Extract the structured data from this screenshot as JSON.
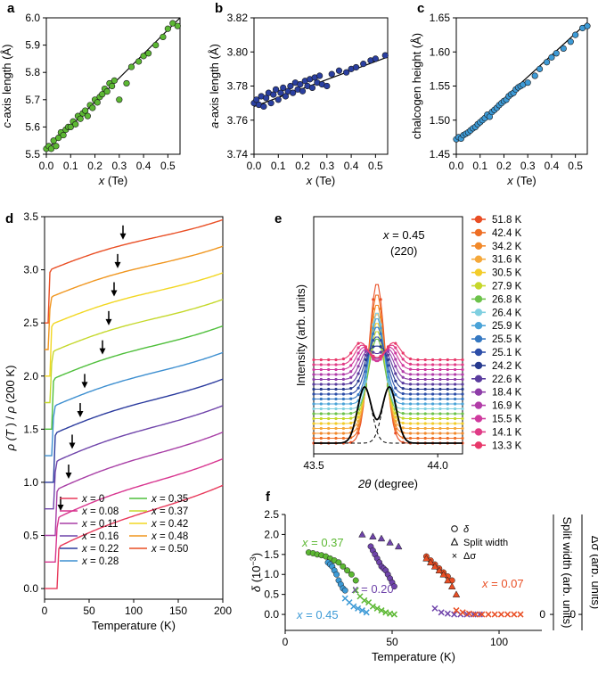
{
  "chart_data": [
    {
      "id": "a",
      "type": "scatter",
      "panel_label": "a",
      "xlabel_var": "x",
      "xlabel_unit": " (Te)",
      "ylabel_var": "c",
      "ylabel_rest": "-axis length (Å)",
      "xlim": [
        0,
        0.55
      ],
      "ylim": [
        5.5,
        6.0
      ],
      "xticks": [
        "0.0",
        "0.1",
        "0.2",
        "0.3",
        "0.4",
        "0.5"
      ],
      "yticks": [
        "5.5",
        "5.6",
        "5.7",
        "5.8",
        "5.9",
        "6.0"
      ],
      "color": "#5cb833",
      "fit": [
        [
          0.0,
          5.515
        ],
        [
          0.55,
          6.0
        ]
      ],
      "points": [
        [
          0.0,
          5.52
        ],
        [
          0.01,
          5.53
        ],
        [
          0.02,
          5.52
        ],
        [
          0.03,
          5.55
        ],
        [
          0.04,
          5.53
        ],
        [
          0.05,
          5.56
        ],
        [
          0.06,
          5.58
        ],
        [
          0.07,
          5.57
        ],
        [
          0.08,
          5.59
        ],
        [
          0.09,
          5.6
        ],
        [
          0.1,
          5.6
        ],
        [
          0.11,
          5.62
        ],
        [
          0.12,
          5.61
        ],
        [
          0.13,
          5.64
        ],
        [
          0.14,
          5.63
        ],
        [
          0.15,
          5.65
        ],
        [
          0.16,
          5.66
        ],
        [
          0.17,
          5.64
        ],
        [
          0.18,
          5.68
        ],
        [
          0.19,
          5.67
        ],
        [
          0.2,
          5.7
        ],
        [
          0.21,
          5.69
        ],
        [
          0.22,
          5.71
        ],
        [
          0.23,
          5.72
        ],
        [
          0.24,
          5.74
        ],
        [
          0.25,
          5.73
        ],
        [
          0.26,
          5.76
        ],
        [
          0.27,
          5.75
        ],
        [
          0.28,
          5.77
        ],
        [
          0.3,
          5.7
        ],
        [
          0.33,
          5.76
        ],
        [
          0.35,
          5.82
        ],
        [
          0.38,
          5.84
        ],
        [
          0.4,
          5.86
        ],
        [
          0.42,
          5.87
        ],
        [
          0.45,
          5.9
        ],
        [
          0.48,
          5.93
        ],
        [
          0.5,
          5.96
        ],
        [
          0.52,
          5.98
        ],
        [
          0.54,
          5.97
        ]
      ]
    },
    {
      "id": "b",
      "type": "scatter",
      "panel_label": "b",
      "xlabel_var": "x",
      "xlabel_unit": " (Te)",
      "ylabel_var": "a",
      "ylabel_rest": "-axis length (Å)",
      "xlim": [
        0,
        0.55
      ],
      "ylim": [
        3.74,
        3.82
      ],
      "xticks": [
        "0.0",
        "0.1",
        "0.2",
        "0.3",
        "0.4",
        "0.5"
      ],
      "yticks": [
        "3.74",
        "3.76",
        "3.78",
        "3.80",
        "3.82"
      ],
      "color": "#2a3fa0",
      "fit": [
        [
          0.0,
          3.768
        ],
        [
          0.55,
          3.797
        ]
      ],
      "points": [
        [
          0.0,
          3.77
        ],
        [
          0.01,
          3.772
        ],
        [
          0.02,
          3.769
        ],
        [
          0.03,
          3.774
        ],
        [
          0.04,
          3.768
        ],
        [
          0.05,
          3.773
        ],
        [
          0.06,
          3.776
        ],
        [
          0.07,
          3.77
        ],
        [
          0.08,
          3.775
        ],
        [
          0.09,
          3.778
        ],
        [
          0.1,
          3.772
        ],
        [
          0.11,
          3.776
        ],
        [
          0.12,
          3.779
        ],
        [
          0.13,
          3.774
        ],
        [
          0.14,
          3.777
        ],
        [
          0.15,
          3.78
        ],
        [
          0.16,
          3.776
        ],
        [
          0.17,
          3.782
        ],
        [
          0.18,
          3.778
        ],
        [
          0.19,
          3.781
        ],
        [
          0.2,
          3.777
        ],
        [
          0.21,
          3.783
        ],
        [
          0.22,
          3.78
        ],
        [
          0.23,
          3.784
        ],
        [
          0.24,
          3.779
        ],
        [
          0.25,
          3.785
        ],
        [
          0.26,
          3.782
        ],
        [
          0.27,
          3.786
        ],
        [
          0.28,
          3.781
        ],
        [
          0.3,
          3.78
        ],
        [
          0.32,
          3.787
        ],
        [
          0.35,
          3.789
        ],
        [
          0.38,
          3.788
        ],
        [
          0.4,
          3.79
        ],
        [
          0.42,
          3.791
        ],
        [
          0.45,
          3.793
        ],
        [
          0.48,
          3.795
        ],
        [
          0.5,
          3.796
        ],
        [
          0.54,
          3.798
        ]
      ]
    },
    {
      "id": "c",
      "type": "scatter",
      "panel_label": "c",
      "xlabel_var": "x",
      "xlabel_unit": " (Te)",
      "ylabel_var": "",
      "ylabel_rest": "chalcogen height (Å)",
      "xlim": [
        0,
        0.55
      ],
      "ylim": [
        1.45,
        1.65
      ],
      "xticks": [
        "0.0",
        "0.1",
        "0.2",
        "0.3",
        "0.4",
        "0.5"
      ],
      "yticks": [
        "1.45",
        "1.50",
        "1.55",
        "1.60",
        "1.65"
      ],
      "color": "#3d9ad6",
      "fit": [
        [
          0.0,
          1.468
        ],
        [
          0.55,
          1.643
        ]
      ],
      "points": [
        [
          0.0,
          1.472
        ],
        [
          0.01,
          1.475
        ],
        [
          0.02,
          1.473
        ],
        [
          0.03,
          1.478
        ],
        [
          0.04,
          1.48
        ],
        [
          0.05,
          1.482
        ],
        [
          0.06,
          1.485
        ],
        [
          0.07,
          1.488
        ],
        [
          0.08,
          1.49
        ],
        [
          0.09,
          1.494
        ],
        [
          0.1,
          1.497
        ],
        [
          0.11,
          1.5
        ],
        [
          0.12,
          1.503
        ],
        [
          0.13,
          1.508
        ],
        [
          0.14,
          1.505
        ],
        [
          0.15,
          1.512
        ],
        [
          0.16,
          1.515
        ],
        [
          0.17,
          1.518
        ],
        [
          0.18,
          1.522
        ],
        [
          0.19,
          1.525
        ],
        [
          0.2,
          1.528
        ],
        [
          0.21,
          1.53
        ],
        [
          0.22,
          1.535
        ],
        [
          0.23,
          1.538
        ],
        [
          0.24,
          1.54
        ],
        [
          0.25,
          1.545
        ],
        [
          0.26,
          1.548
        ],
        [
          0.27,
          1.55
        ],
        [
          0.28,
          1.552
        ],
        [
          0.3,
          1.555
        ],
        [
          0.33,
          1.565
        ],
        [
          0.35,
          1.575
        ],
        [
          0.38,
          1.585
        ],
        [
          0.4,
          1.592
        ],
        [
          0.42,
          1.598
        ],
        [
          0.45,
          1.605
        ],
        [
          0.48,
          1.615
        ],
        [
          0.5,
          1.625
        ],
        [
          0.53,
          1.635
        ],
        [
          0.55,
          1.638
        ]
      ]
    },
    {
      "id": "d",
      "type": "line",
      "panel_label": "d",
      "xlabel": "Temperature (K)",
      "ylabel": "ρ (T ) / ρ (200 K)",
      "xlim": [
        0,
        200
      ],
      "ylim": [
        -0.1,
        3.5
      ],
      "xticks": [
        "0",
        "50",
        "100",
        "150",
        "200"
      ],
      "yticks": [
        "0.0",
        "0.5",
        "1.0",
        "1.5",
        "2.0",
        "2.5",
        "3.0",
        "3.5"
      ],
      "series": [
        {
          "name": "x = 0",
          "color": "#e8385a",
          "offset": 0.0,
          "tc": 14,
          "res0": 0.33,
          "arrow_T": null
        },
        {
          "name": "x = 0.08",
          "color": "#d8358f",
          "offset": 0.25,
          "tc": 13,
          "res0": 0.36,
          "arrow_T": 18
        },
        {
          "name": "x = 0.11",
          "color": "#a83fa6",
          "offset": 0.5,
          "tc": 12,
          "res0": 0.38,
          "arrow_T": 27
        },
        {
          "name": "x = 0.16",
          "color": "#6f44aa",
          "offset": 0.75,
          "tc": 11,
          "res0": 0.4,
          "arrow_T": 31
        },
        {
          "name": "x = 0.22",
          "color": "#2b3b9e",
          "offset": 1.0,
          "tc": 10,
          "res0": 0.42,
          "arrow_T": 40
        },
        {
          "name": "x = 0.28",
          "color": "#3d8fd0",
          "offset": 1.25,
          "tc": 9,
          "res0": 0.43,
          "arrow_T": 45
        },
        {
          "name": "x = 0.35",
          "color": "#4fbf3b",
          "offset": 1.5,
          "tc": 8,
          "res0": 0.44,
          "arrow_T": 65
        },
        {
          "name": "x = 0.37",
          "color": "#c5d82b",
          "offset": 1.75,
          "tc": 7,
          "res0": 0.45,
          "arrow_T": 72
        },
        {
          "name": "x = 0.42",
          "color": "#f2d722",
          "offset": 2.0,
          "tc": 6,
          "res0": 0.46,
          "arrow_T": 78
        },
        {
          "name": "x = 0.48",
          "color": "#f0961f",
          "offset": 2.25,
          "tc": 5,
          "res0": 0.47,
          "arrow_T": 82
        },
        {
          "name": "x = 0.50",
          "color": "#e94e24",
          "offset": 2.5,
          "tc": 4,
          "res0": 0.48,
          "arrow_T": 88
        }
      ]
    },
    {
      "id": "e",
      "type": "line",
      "panel_label": "e",
      "xlabel_var": "2θ",
      "xlabel_rest": " (degree)",
      "ylabel": "Intensity (arb. units)",
      "xlim": [
        43.5,
        44.1
      ],
      "xticks": [
        "43.5",
        "44.0"
      ],
      "annotation": [
        "x = 0.45",
        "(220)"
      ],
      "series": [
        {
          "name": "51.8 K",
          "color": "#e94e24"
        },
        {
          "name": "42.4 K",
          "color": "#ee6e24"
        },
        {
          "name": "34.2 K",
          "color": "#f2892a"
        },
        {
          "name": "31.6 K",
          "color": "#f5a83a"
        },
        {
          "name": "30.5 K",
          "color": "#f3cc29"
        },
        {
          "name": "27.9 K",
          "color": "#c6d72a"
        },
        {
          "name": "26.8 K",
          "color": "#6cc24a"
        },
        {
          "name": "26.4 K",
          "color": "#7fcfe0"
        },
        {
          "name": "25.9 K",
          "color": "#4aa3d8"
        },
        {
          "name": "25.5 K",
          "color": "#3578c2"
        },
        {
          "name": "25.1 K",
          "color": "#2d4ea8"
        },
        {
          "name": "24.2 K",
          "color": "#273a8f"
        },
        {
          "name": "22.6 K",
          "color": "#5a3c9e"
        },
        {
          "name": "18.4 K",
          "color": "#8e3da8"
        },
        {
          "name": "16.9 K",
          "color": "#b23ca8"
        },
        {
          "name": "15.5 K",
          "color": "#cf3a9e"
        },
        {
          "name": "14.1 K",
          "color": "#e03b86"
        },
        {
          "name": "13.3 K",
          "color": "#e8386a"
        }
      ]
    },
    {
      "id": "f",
      "type": "scatter",
      "panel_label": "f",
      "xlabel": "Temperature (K)",
      "ylabel": "δ (10⁻³)",
      "ylabel_right1": "Split width (arb. units)",
      "ylabel_right2": "Δσ (arb. units)",
      "xlim": [
        0,
        120
      ],
      "ylim": [
        -0.4,
        2.5
      ],
      "xticks": [
        "0",
        "50",
        "100"
      ],
      "yticks": [
        "0.0",
        "0.5",
        "1.0",
        "1.5",
        "2.0",
        "2.5"
      ],
      "right_zero_labels": [
        "0",
        "0"
      ],
      "legend": [
        "δ",
        "Split width",
        "Δσ"
      ],
      "groups": [
        {
          "label": "x = 0.37",
          "color": "#5cb833",
          "delta": [
            [
              11,
              1.55
            ],
            [
              13,
              1.53
            ],
            [
              15,
              1.5
            ],
            [
              17,
              1.48
            ],
            [
              19,
              1.45
            ],
            [
              21,
              1.4
            ],
            [
              23,
              1.35
            ],
            [
              25,
              1.3
            ],
            [
              27,
              1.2
            ],
            [
              29,
              1.1
            ],
            [
              31,
              1.0
            ],
            [
              33,
              0.85
            ]
          ],
          "sigma": [
            [
              33,
              0.6
            ],
            [
              35,
              0.45
            ],
            [
              37,
              0.35
            ],
            [
              39,
              0.3
            ],
            [
              41,
              0.2
            ],
            [
              43,
              0.15
            ],
            [
              45,
              0.1
            ],
            [
              47,
              0.05
            ],
            [
              49,
              0.02
            ],
            [
              51,
              0.0
            ]
          ]
        },
        {
          "label": "x = 0.45",
          "color": "#3d9ad6",
          "delta": [
            [
              20,
              1.3
            ],
            [
              21,
              1.25
            ],
            [
              22,
              1.2
            ],
            [
              23,
              1.1
            ],
            [
              24,
              1.0
            ],
            [
              25,
              0.85
            ],
            [
              26,
              0.75
            ],
            [
              27,
              0.65
            ],
            [
              28,
              0.6
            ]
          ],
          "sigma": [
            [
              28,
              0.4
            ],
            [
              30,
              0.3
            ],
            [
              32,
              0.2
            ],
            [
              34,
              0.15
            ],
            [
              36,
              0.1
            ],
            [
              38,
              0.05
            ]
          ]
        },
        {
          "label": "x = 0.20",
          "color": "#6f44aa",
          "delta": [
            [
              40,
              1.7
            ],
            [
              41,
              1.6
            ],
            [
              42,
              1.5
            ],
            [
              43,
              1.4
            ],
            [
              44,
              1.3
            ],
            [
              45,
              1.2
            ],
            [
              46,
              1.15
            ],
            [
              47,
              1.1
            ],
            [
              48,
              1.0
            ],
            [
              49,
              0.9
            ],
            [
              50,
              0.8
            ],
            [
              51,
              0.7
            ]
          ],
          "split": [
            [
              36,
              2.0
            ],
            [
              41,
              1.95
            ],
            [
              45,
              1.9
            ],
            [
              49,
              1.8
            ],
            [
              53,
              1.7
            ]
          ],
          "sigma": [
            [
              70,
              0.15
            ],
            [
              73,
              0.05
            ],
            [
              76,
              0.02
            ],
            [
              79,
              0.0
            ],
            [
              82,
              0.0
            ],
            [
              85,
              0.0
            ],
            [
              88,
              0.0
            ],
            [
              91,
              0.0
            ]
          ]
        },
        {
          "label": "x = 0.07",
          "color": "#e94e24",
          "delta": [
            [
              66,
              1.45
            ],
            [
              68,
              1.35
            ],
            [
              70,
              1.25
            ],
            [
              72,
              1.15
            ],
            [
              74,
              1.05
            ],
            [
              76,
              0.95
            ],
            [
              78,
              0.85
            ]
          ],
          "split": [
            [
              66,
              1.4
            ],
            [
              68,
              1.3
            ],
            [
              70,
              1.2
            ],
            [
              72,
              1.1
            ],
            [
              74,
              1.0
            ],
            [
              76,
              0.85
            ],
            [
              78,
              0.7
            ],
            [
              80,
              0.5
            ]
          ],
          "sigma": [
            [
              80,
              0.1
            ],
            [
              83,
              0.05
            ],
            [
              86,
              0.02
            ],
            [
              89,
              0.0
            ],
            [
              92,
              0.0
            ],
            [
              95,
              0.0
            ],
            [
              98,
              0.0
            ],
            [
              101,
              0.0
            ],
            [
              104,
              0.0
            ],
            [
              107,
              0.0
            ],
            [
              110,
              0.0
            ]
          ]
        }
      ]
    }
  ]
}
